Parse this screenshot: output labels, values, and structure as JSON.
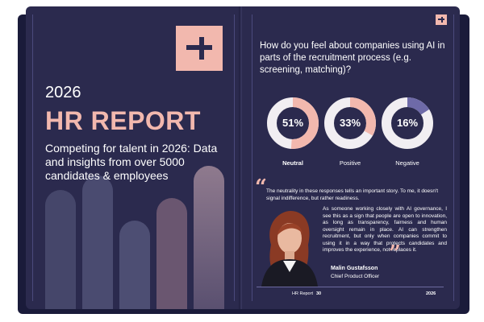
{
  "cover": {
    "year": "2026",
    "title": "HR REPORT",
    "subtitle": "Competing for talent in 2026: Data and insights from over 5000 candidates & employees"
  },
  "survey": {
    "question": "How do you feel about companies using AI in parts of the recruitment process (e.g. screening, matching)?",
    "results": [
      {
        "label": "Neutral",
        "value": 51,
        "display": "51%",
        "color": "#f2b8ae"
      },
      {
        "label": "Positive",
        "value": 33,
        "display": "33%",
        "color": "#f2b8ae"
      },
      {
        "label": "Negative",
        "value": 16,
        "display": "16%",
        "color": "#6e6aa8"
      }
    ]
  },
  "quote": {
    "text1": "The neutrality in these responses tells an important story. To me, it doesn't signal indifference, but rather readiness.",
    "text2": "As someone working closely with AI governance, I see this as a sign that people are open to innovation, as long as transparency, fairness and human oversight remain in place. AI can strengthen recruitment, but only when companies commit to using it in a way that protects candidates and improves the experience, not replaces it.",
    "name": "Malin Gustafsson",
    "role": "Chief Product Officer"
  },
  "footer": {
    "label": "HR Report",
    "page": "30",
    "year": "2026"
  },
  "colors": {
    "page": "#2b2a4e",
    "accent": "#f2b8ae",
    "ring_track": "#f1eef2"
  },
  "icons": {
    "logo": "brand-logo-icon",
    "quote": "quote-mark-icon"
  }
}
